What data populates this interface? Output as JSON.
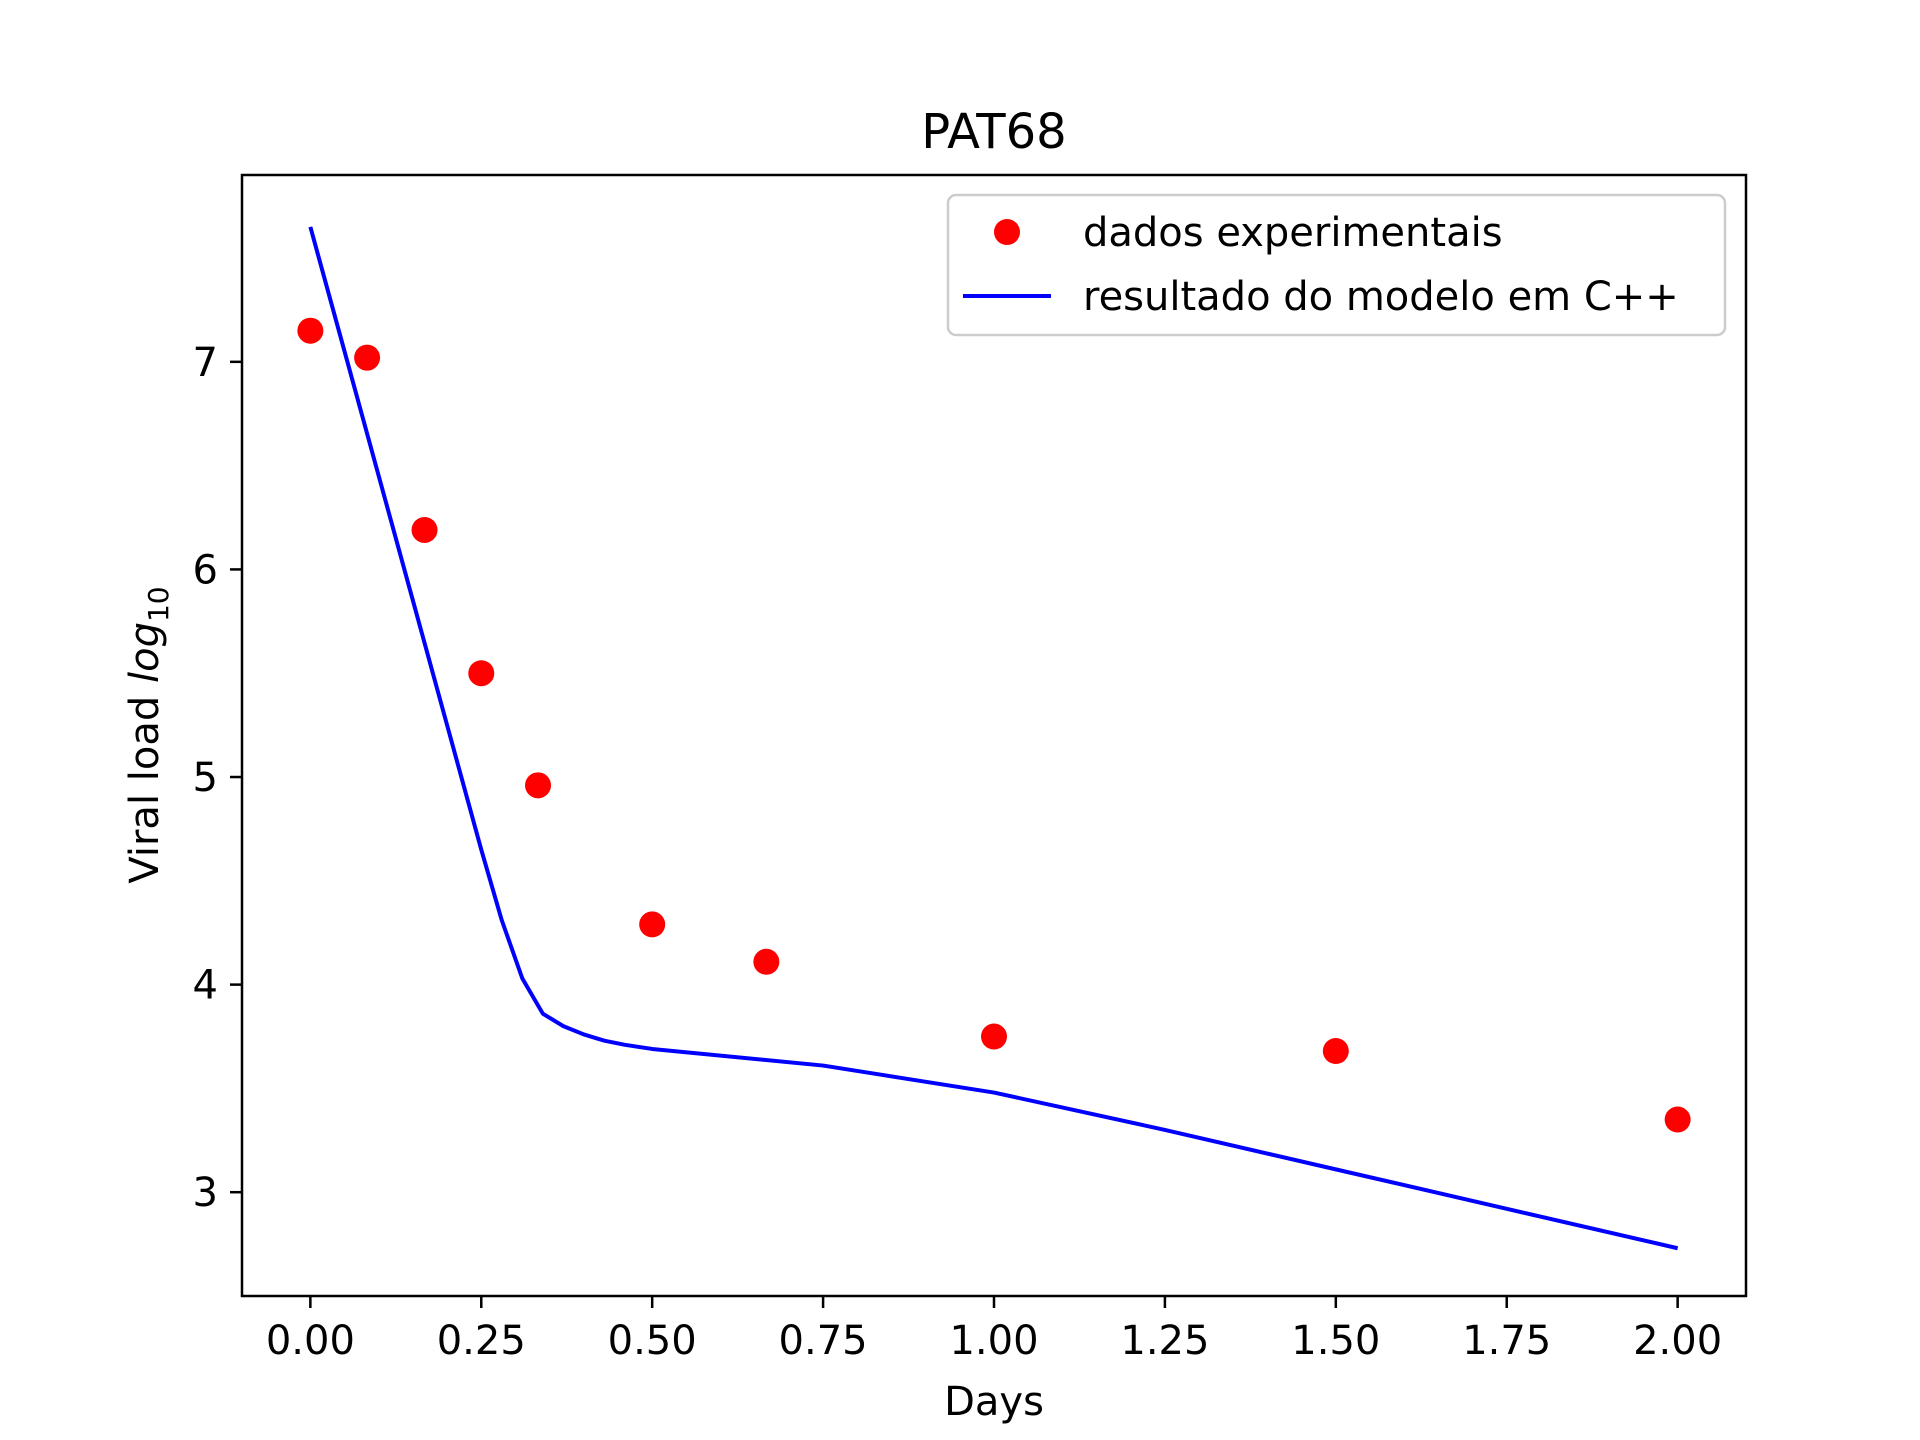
{
  "chart_data": {
    "type": "scatter",
    "title": "PAT68",
    "xlabel": "Days",
    "ylabel_prefix": "Viral load ",
    "ylabel_math_base": "log",
    "ylabel_math_sub": "10",
    "xlim": [
      -0.1,
      2.1
    ],
    "ylim": [
      2.5,
      7.9
    ],
    "x_ticks": [
      0.0,
      0.25,
      0.5,
      0.75,
      1.0,
      1.25,
      1.5,
      1.75,
      2.0
    ],
    "x_tick_labels": [
      "0.00",
      "0.25",
      "0.50",
      "0.75",
      "1.00",
      "1.25",
      "1.50",
      "1.75",
      "2.00"
    ],
    "y_ticks": [
      3,
      4,
      5,
      6,
      7
    ],
    "y_tick_labels": [
      "3",
      "4",
      "5",
      "6",
      "7"
    ],
    "grid": false,
    "legend_position": "top-right",
    "series": [
      {
        "name": "dados experimentais",
        "kind": "scatter",
        "color": "#ff0000",
        "x": [
          0.0,
          0.083,
          0.167,
          0.25,
          0.333,
          0.5,
          0.667,
          1.0,
          1.5,
          2.0
        ],
        "y": [
          7.15,
          7.02,
          6.19,
          5.5,
          4.96,
          4.29,
          4.11,
          3.75,
          3.68,
          3.35
        ]
      },
      {
        "name": "resultado do modelo em C++",
        "kind": "line",
        "color": "#0000ff",
        "x": [
          0.0,
          0.05,
          0.1,
          0.15,
          0.2,
          0.25,
          0.28,
          0.31,
          0.34,
          0.37,
          0.4,
          0.43,
          0.46,
          0.5,
          0.75,
          1.0,
          1.25,
          1.5,
          1.75,
          2.0
        ],
        "y": [
          7.65,
          7.05,
          6.45,
          5.85,
          5.25,
          4.65,
          4.31,
          4.03,
          3.86,
          3.8,
          3.76,
          3.73,
          3.71,
          3.69,
          3.61,
          3.48,
          3.3,
          3.11,
          2.92,
          2.73
        ]
      }
    ]
  }
}
